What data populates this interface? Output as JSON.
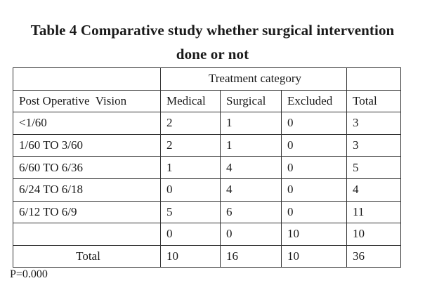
{
  "title": {
    "line1": "Table 4 Comparative study whether surgical intervention",
    "line2": "done or not"
  },
  "table": {
    "group_header": "Treatment category",
    "columns": [
      "Post Operative  Vision",
      "Medical",
      "Surgical",
      "Excluded",
      "Total"
    ],
    "rows": [
      {
        "label": "<1/60",
        "medical": "2",
        "surgical": "1",
        "excluded": "0",
        "total": "3"
      },
      {
        "label": "1/60 TO 3/60",
        "medical": "2",
        "surgical": "1",
        "excluded": "0",
        "total": "3"
      },
      {
        "label": "6/60 TO 6/36",
        "medical": "1",
        "surgical": "4",
        "excluded": "0",
        "total": "5"
      },
      {
        "label": "6/24 TO 6/18",
        "medical": "0",
        "surgical": "4",
        "excluded": "0",
        "total": "4"
      },
      {
        "label": "6/12 TO 6/9",
        "medical": "5",
        "surgical": "6",
        "excluded": "0",
        "total": "11"
      },
      {
        "label": "",
        "medical": "0",
        "surgical": "0",
        "excluded": "10",
        "total": "10"
      }
    ],
    "total_row": {
      "label": "Total",
      "medical": "10",
      "surgical": "16",
      "excluded": "10",
      "total": "36"
    }
  },
  "footnote": "P=0.000"
}
